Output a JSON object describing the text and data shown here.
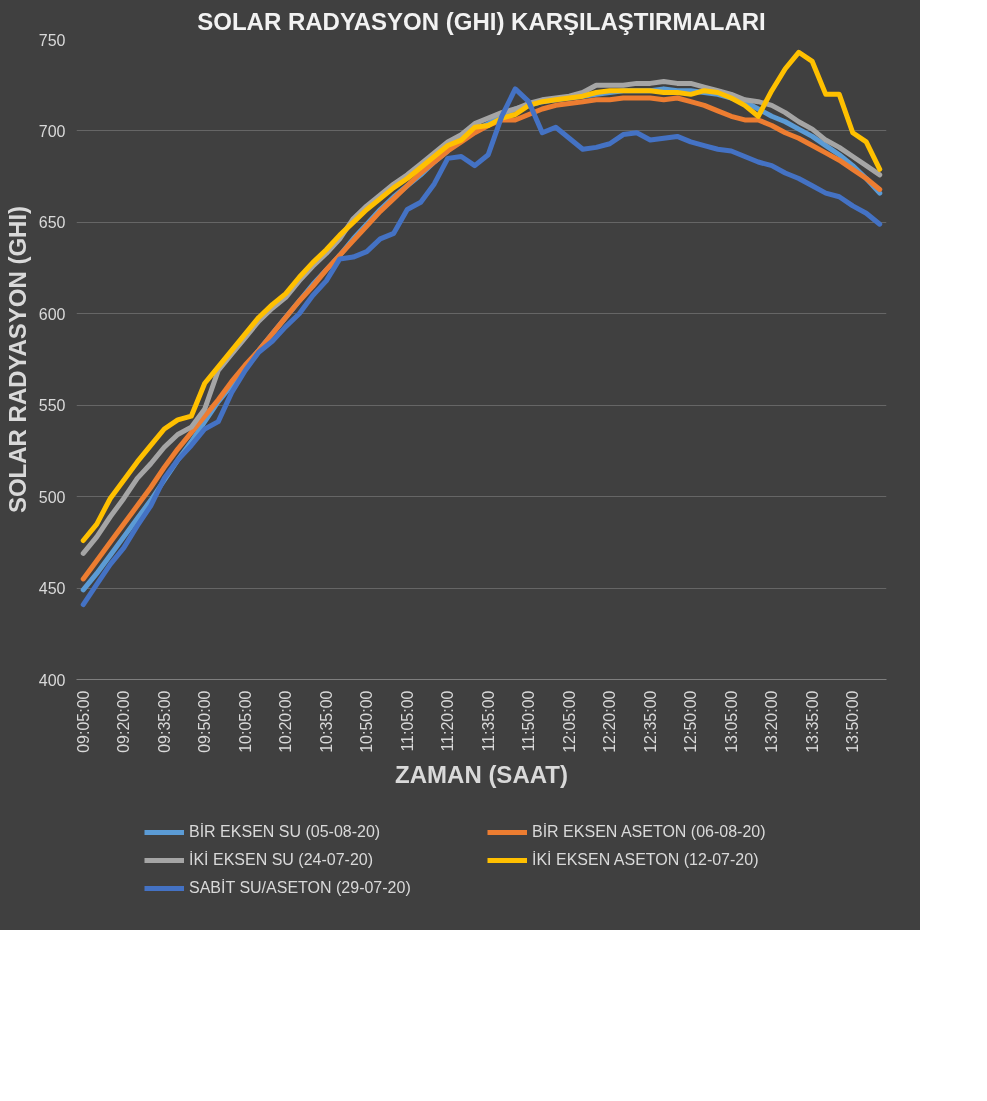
{
  "chart_data": {
    "type": "line",
    "title": "SOLAR RADYASYON (GHI) KARŞILAŞTIRMALARI",
    "xlabel": "ZAMAN (SAAT)",
    "ylabel": "SOLAR RADYASYON (GHI)",
    "categories": [
      "09:05:00",
      null,
      null,
      "09:20:00",
      null,
      null,
      "09:35:00",
      null,
      null,
      "09:50:00",
      null,
      null,
      "10:05:00",
      null,
      null,
      "10:20:00",
      null,
      null,
      "10:35:00",
      null,
      null,
      "10:50:00",
      null,
      null,
      "11:05:00",
      null,
      null,
      "11:20:00",
      null,
      null,
      "11:35:00",
      null,
      null,
      "11:50:00",
      null,
      null,
      "12:05:00",
      null,
      null,
      "12:20:00",
      null,
      null,
      "12:35:00",
      null,
      null,
      "12:50:00",
      null,
      null,
      "13:05:00",
      null,
      null,
      "13:20:00",
      null,
      null,
      "13:35:00",
      null,
      null,
      "13:50:00",
      null,
      null
    ],
    "ylim": [
      400,
      750
    ],
    "yticks": [
      400,
      450,
      500,
      550,
      600,
      650,
      700,
      750
    ],
    "grid": "y",
    "legend": "bottom",
    "marker": "none",
    "line_style": "solid",
    "series": [
      {
        "name": "BİR EKSEN SU (05-08-20)",
        "color": "#5b9bd5",
        "values": [
          449,
          458,
          468,
          478,
          488,
          498,
          509,
          520,
          530,
          541,
          552,
          561,
          571,
          580,
          589,
          598,
          607,
          616,
          624,
          632,
          641,
          649,
          657,
          664,
          670,
          676,
          683,
          689,
          696,
          700,
          704,
          708,
          712,
          714,
          716,
          717,
          718,
          719,
          720,
          721,
          722,
          722,
          722,
          723,
          722,
          722,
          721,
          720,
          718,
          716,
          712,
          708,
          705,
          701,
          697,
          692,
          687,
          681,
          674,
          666
        ]
      },
      {
        "name": "BİR EKSEN ASETON (06-08-20)",
        "color": "#ed7d31",
        "values": [
          455,
          465,
          475,
          485,
          495,
          505,
          516,
          526,
          535,
          544,
          553,
          563,
          572,
          580,
          589,
          598,
          607,
          615,
          624,
          632,
          640,
          648,
          656,
          663,
          670,
          677,
          683,
          689,
          694,
          699,
          703,
          706,
          706,
          709,
          712,
          714,
          715,
          716,
          717,
          717,
          718,
          718,
          718,
          717,
          718,
          716,
          714,
          711,
          708,
          706,
          706,
          703,
          699,
          696,
          692,
          688,
          684,
          679,
          674,
          668
        ]
      },
      {
        "name": "İKİ EKSEN SU (24-07-20)",
        "color": "#a5a5a5",
        "values": [
          469,
          478,
          489,
          499,
          510,
          518,
          527,
          534,
          538,
          548,
          569,
          578,
          587,
          596,
          603,
          609,
          618,
          626,
          633,
          641,
          652,
          659,
          665,
          671,
          676,
          682,
          688,
          694,
          698,
          704,
          707,
          710,
          712,
          715,
          717,
          718,
          719,
          721,
          725,
          725,
          725,
          726,
          726,
          727,
          726,
          726,
          724,
          722,
          720,
          717,
          716,
          714,
          710,
          705,
          701,
          695,
          691,
          686,
          681,
          676
        ]
      },
      {
        "name": "İKİ EKSEN ASETON (12-07-20)",
        "color": "#ffc000",
        "values": [
          476,
          485,
          499,
          509,
          519,
          528,
          537,
          542,
          544,
          562,
          571,
          580,
          589,
          598,
          605,
          611,
          620,
          628,
          635,
          643,
          650,
          657,
          663,
          669,
          674,
          680,
          686,
          692,
          695,
          702,
          703,
          707,
          709,
          714,
          716,
          717,
          718,
          719,
          721,
          722,
          722,
          722,
          722,
          721,
          721,
          720,
          722,
          721,
          718,
          714,
          708,
          722,
          734,
          743,
          738,
          720,
          720,
          699,
          694,
          679
        ]
      },
      {
        "name": "SABİT SU/ASETON (29-07-20)",
        "color": "#4472c4",
        "values": [
          441,
          452,
          463,
          472,
          484,
          495,
          510,
          520,
          528,
          537,
          541,
          557,
          569,
          579,
          585,
          593,
          600,
          610,
          618,
          630,
          631,
          634,
          641,
          644,
          657,
          661,
          671,
          685,
          686,
          681,
          687,
          708,
          723,
          716,
          699,
          702,
          696,
          690,
          691,
          693,
          698,
          699,
          695,
          696,
          697,
          694,
          692,
          690,
          689,
          686,
          683,
          681,
          677,
          674,
          670,
          666,
          664,
          659,
          655,
          649
        ]
      }
    ]
  }
}
